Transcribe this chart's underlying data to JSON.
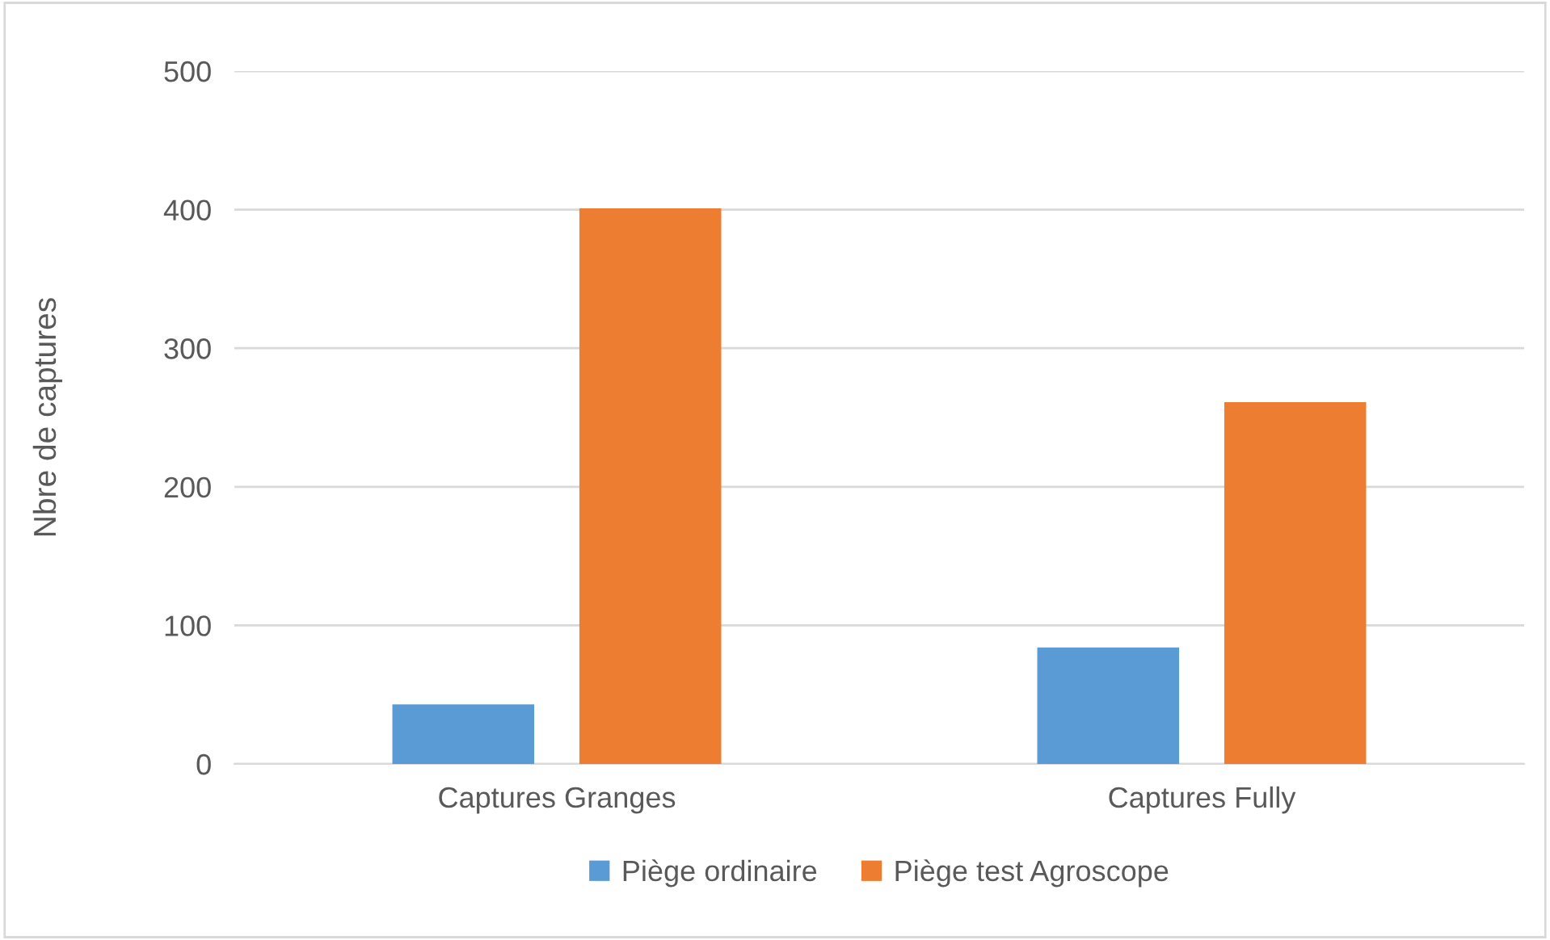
{
  "chart_data": {
    "type": "bar",
    "ylabel": "Nbre de captures",
    "categories": [
      "Captures Granges",
      "Captures Fully"
    ],
    "series": [
      {
        "name": "Piège ordinaire",
        "color": "#5b9bd5",
        "values": [
          43,
          84
        ]
      },
      {
        "name": "Piège test Agroscope",
        "color": "#ed7d31",
        "values": [
          401,
          261
        ]
      }
    ],
    "ylim": [
      0,
      500
    ],
    "yticks": [
      0,
      100,
      200,
      300,
      400,
      500
    ],
    "grid": "y",
    "legend": "bottom"
  }
}
